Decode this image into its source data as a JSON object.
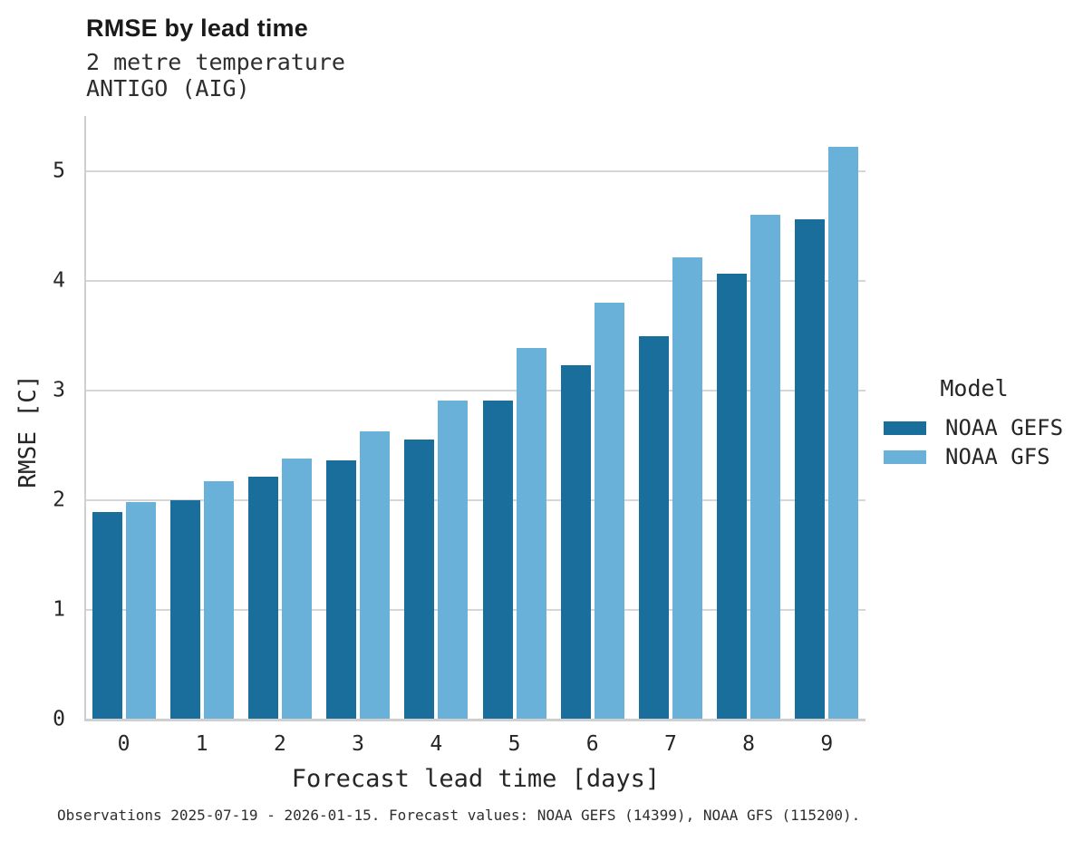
{
  "chart_data": {
    "type": "bar",
    "title": "RMSE by lead time",
    "subtitle": [
      "2 metre temperature",
      "ANTIGO (AIG)"
    ],
    "categories": [
      "0",
      "1",
      "2",
      "3",
      "4",
      "5",
      "6",
      "7",
      "8",
      "9"
    ],
    "series": [
      {
        "name": "NOAA GEFS",
        "color": "#1a6e9c",
        "values": [
          1.89,
          2.0,
          2.21,
          2.36,
          2.55,
          2.91,
          3.23,
          3.49,
          4.06,
          4.56
        ]
      },
      {
        "name": "NOAA GFS",
        "color": "#6ab1d9",
        "values": [
          1.98,
          2.17,
          2.38,
          2.63,
          2.91,
          3.39,
          3.8,
          4.21,
          4.6,
          5.22
        ]
      }
    ],
    "xlabel": "Forecast lead time [days]",
    "ylabel": "RMSE [C]",
    "ylim": [
      0,
      5.5
    ],
    "yticks": [
      0,
      1,
      2,
      3,
      4,
      5
    ],
    "grid": "horizontal",
    "legend_title": "Model",
    "legend_position": "right",
    "axis_color": "#cfcfcf",
    "grid_color": "#d6d6d6"
  },
  "caption": "Observations 2025-07-19 - 2026-01-15. Forecast values: NOAA GEFS (14399), NOAA GFS (115200)."
}
